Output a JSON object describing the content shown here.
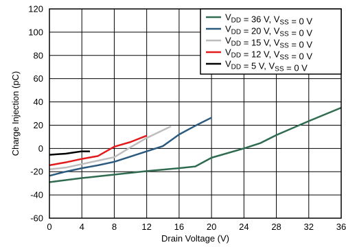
{
  "chart_data": {
    "type": "line",
    "xlabel": "Drain Voltage (V)",
    "ylabel": "Charge Injection (pC)",
    "xlim": [
      0,
      36
    ],
    "ylim": [
      -60,
      120
    ],
    "xticks": [
      0,
      4,
      8,
      12,
      16,
      20,
      24,
      28,
      32,
      36
    ],
    "yticks": [
      -60,
      -40,
      -20,
      0,
      20,
      40,
      60,
      80,
      100,
      120
    ],
    "grid": true,
    "legend_position": "top-right",
    "series": [
      {
        "name": "V_DD = 36 V, V_SS = 0 V",
        "label_parts": [
          [
            "V",
            "DD",
            " = 36 V, V",
            "SS",
            " = 0 V"
          ]
        ],
        "color": "#2e6b4f",
        "x": [
          0,
          4,
          8,
          12,
          16,
          18,
          20,
          24,
          26,
          28,
          32,
          36
        ],
        "y": [
          -29,
          -25.5,
          -22.5,
          -19.5,
          -17,
          -15.5,
          -8,
          0,
          4.5,
          11.5,
          23.5,
          35
        ]
      },
      {
        "name": "V_DD = 20 V, V_SS = 0 V",
        "color": "#2b5a7f",
        "x": [
          0,
          2,
          4,
          6,
          8,
          10,
          12,
          14,
          16,
          18,
          20
        ],
        "y": [
          -23.5,
          -20,
          -17,
          -14.5,
          -11.5,
          -7,
          -2.5,
          2,
          12,
          19.5,
          26.5
        ]
      },
      {
        "name": "V_DD = 15 V, V_SS = 0 V",
        "color": "#bdbdbd",
        "x": [
          0,
          2,
          4,
          6,
          8,
          10,
          12,
          15
        ],
        "y": [
          -18,
          -16.5,
          -13.5,
          -10.5,
          -7.5,
          1,
          9,
          19
        ]
      },
      {
        "name": "V_DD = 12 V, V_SS = 0 V",
        "color": "#e31a1c",
        "x": [
          0,
          2,
          4,
          6,
          8,
          10,
          12
        ],
        "y": [
          -14.5,
          -12,
          -9,
          -6.5,
          1.5,
          5.5,
          11
        ]
      },
      {
        "name": "V_DD = 5 V, V_SS = 0 V",
        "color": "#000000",
        "x": [
          0,
          1,
          2,
          3,
          4,
          5
        ],
        "y": [
          -5.5,
          -5,
          -4.5,
          -3.5,
          -2.5,
          -2.5
        ]
      }
    ],
    "legend": [
      {
        "base1": "V",
        "sub1": "DD",
        "mid": " = 36 V, V",
        "sub2": "SS",
        "tail": " = 0 V"
      },
      {
        "base1": "V",
        "sub1": "DD",
        "mid": " = 20 V, V",
        "sub2": "SS",
        "tail": " = 0 V"
      },
      {
        "base1": "V",
        "sub1": "DD",
        "mid": " = 15 V, V",
        "sub2": "SS",
        "tail": " = 0 V"
      },
      {
        "base1": "V",
        "sub1": "DD",
        "mid": " = 12 V, V",
        "sub2": "SS",
        "tail": " = 0 V"
      },
      {
        "base1": "V",
        "sub1": "DD",
        "mid": " = 5 V, V",
        "sub2": "SS",
        "tail": " = 0 V"
      }
    ]
  }
}
